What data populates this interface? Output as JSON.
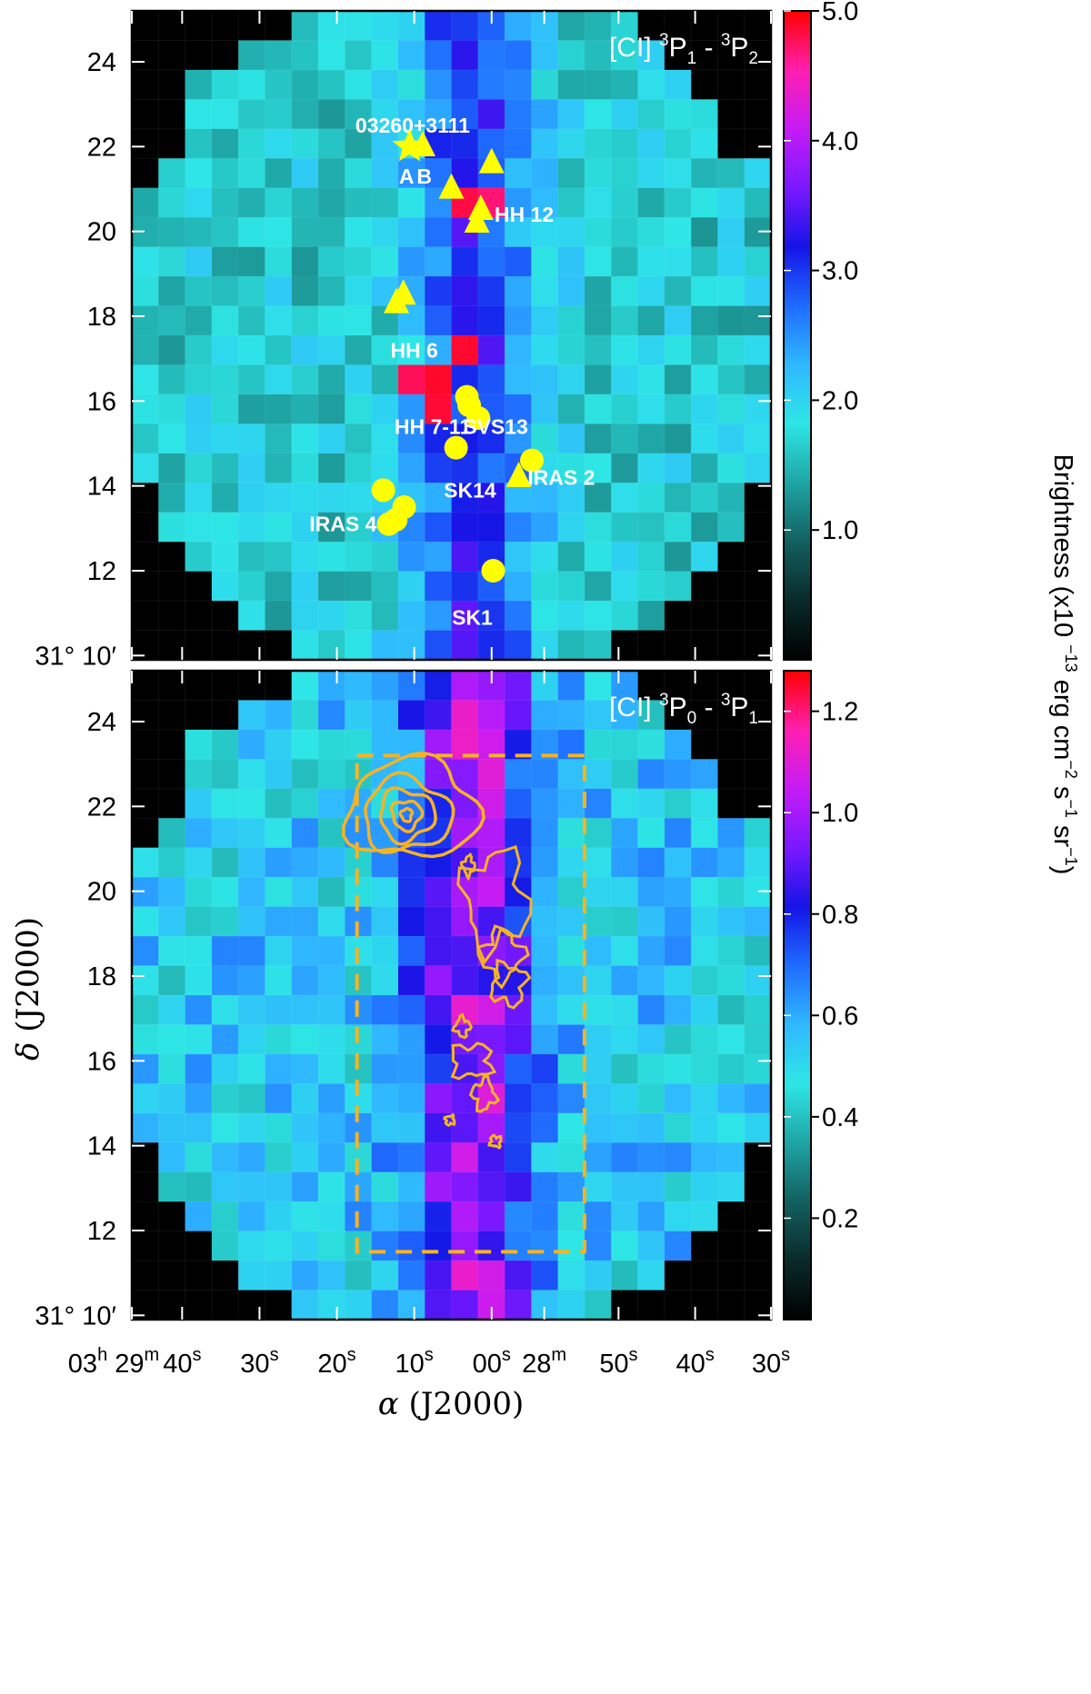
{
  "chart_data": [
    {
      "type": "heatmap",
      "panel": "top",
      "label": "[CI] 3P1 - 3P2",
      "label_parts": {
        "prefix": "[CI] ",
        "sup1": "3",
        "mid1": "P",
        "sub1": "1",
        "dash": " - ",
        "sup2": "3",
        "mid2": "P",
        "sub2": "2"
      },
      "grid_cols": 24,
      "grid_rows": 22,
      "peak_cells": [
        [
          12,
          6
        ],
        [
          13,
          6
        ],
        [
          11,
          12
        ],
        [
          12,
          11
        ],
        [
          11,
          13
        ],
        [
          10,
          12
        ]
      ],
      "sources": [
        {
          "name": "03260+3111",
          "ra_arcmin": 10.2,
          "dec_arcmin": 22.5,
          "marker": "none"
        },
        {
          "name": "A",
          "ra_arcmin": 11.0,
          "dec_arcmin": 21.3,
          "marker": "none"
        },
        {
          "name": "B",
          "ra_arcmin": 8.7,
          "dec_arcmin": 21.3,
          "marker": "none"
        },
        {
          "name": "star-A",
          "ra_arcmin": 10.6,
          "dec_arcmin": 22.0,
          "marker": "star"
        },
        {
          "name": "tri-B",
          "ra_arcmin": 8.9,
          "dec_arcmin": 22.0,
          "marker": "triangle"
        },
        {
          "name": "tri-1",
          "ra_arcmin": 0.0,
          "dec_arcmin": 21.6,
          "marker": "triangle"
        },
        {
          "name": "tri-2",
          "ra_arcmin": 5.2,
          "dec_arcmin": 21.0,
          "marker": "triangle"
        },
        {
          "name": "tri-3",
          "ra_arcmin": 1.4,
          "dec_arcmin": 20.5,
          "marker": "triangle"
        },
        {
          "name": "tri-4",
          "ra_arcmin": 1.9,
          "dec_arcmin": 20.2,
          "marker": "triangle"
        },
        {
          "name": "HH 12",
          "ra_arcmin": -4.2,
          "dec_arcmin": 20.4,
          "marker": "none"
        },
        {
          "name": "tri-5",
          "ra_arcmin": 12.3,
          "dec_arcmin": 18.3,
          "marker": "triangle"
        },
        {
          "name": "tri-6",
          "ra_arcmin": 11.4,
          "dec_arcmin": 18.5,
          "marker": "triangle"
        },
        {
          "name": "HH 6",
          "ra_arcmin": 10.0,
          "dec_arcmin": 17.2,
          "marker": "none"
        },
        {
          "name": "circ-1",
          "ra_arcmin": 2.9,
          "dec_arcmin": 15.9,
          "marker": "circle"
        },
        {
          "name": "circ-2",
          "ra_arcmin": 3.2,
          "dec_arcmin": 16.1,
          "marker": "circle"
        },
        {
          "name": "circ-3",
          "ra_arcmin": 1.7,
          "dec_arcmin": 15.6,
          "marker": "circle"
        },
        {
          "name": "HH 7-11",
          "ra_arcmin": 7.6,
          "dec_arcmin": 15.4,
          "marker": "none"
        },
        {
          "name": "SVS13",
          "ra_arcmin": -0.5,
          "dec_arcmin": 15.4,
          "marker": "none"
        },
        {
          "name": "circ-4",
          "ra_arcmin": 4.6,
          "dec_arcmin": 14.9,
          "marker": "circle"
        },
        {
          "name": "circ-5",
          "ra_arcmin": -5.2,
          "dec_arcmin": 14.6,
          "marker": "circle"
        },
        {
          "name": "tri-7",
          "ra_arcmin": -3.5,
          "dec_arcmin": 14.2,
          "marker": "triangle"
        },
        {
          "name": "IRAS 2",
          "ra_arcmin": -9.0,
          "dec_arcmin": 14.2,
          "marker": "none"
        },
        {
          "name": "SK14",
          "ra_arcmin": 2.8,
          "dec_arcmin": 13.9,
          "marker": "none"
        },
        {
          "name": "circ-6",
          "ra_arcmin": 14.0,
          "dec_arcmin": 13.9,
          "marker": "circle"
        },
        {
          "name": "circ-7",
          "ra_arcmin": 11.3,
          "dec_arcmin": 13.5,
          "marker": "circle"
        },
        {
          "name": "circ-8",
          "ra_arcmin": 12.4,
          "dec_arcmin": 13.2,
          "marker": "circle"
        },
        {
          "name": "circ-9",
          "ra_arcmin": 13.3,
          "dec_arcmin": 13.1,
          "marker": "circle"
        },
        {
          "name": "IRAS 4",
          "ra_arcmin": 19.2,
          "dec_arcmin": 13.1,
          "marker": "none"
        },
        {
          "name": "circ-10",
          "ra_arcmin": -0.2,
          "dec_arcmin": 12.0,
          "marker": "circle"
        },
        {
          "name": "SK1",
          "ra_arcmin": 2.5,
          "dec_arcmin": 10.9,
          "marker": "none"
        }
      ]
    },
    {
      "type": "heatmap",
      "panel": "bottom",
      "label": "[CI] 3P0 - 3P1",
      "label_parts": {
        "prefix": "[CI] ",
        "sup1": "3",
        "mid1": "P",
        "sub1": "0",
        "dash": " - ",
        "sup2": "3",
        "mid2": "P",
        "sub2": "1"
      },
      "grid_cols": 24,
      "grid_rows": 22,
      "dashed_box": {
        "ra_east": 17.4,
        "ra_west": -12.0,
        "dec_south": 11.5,
        "dec_north": 23.2,
        "color": "#f5b324"
      },
      "contour_color": "#f5b324"
    }
  ],
  "axes": {
    "xlabel": "α (J2000)",
    "xlabel_parts": {
      "greek": "α",
      "rest": " (J2000)"
    },
    "ylabel": "δ (J2000)",
    "ylabel_parts": {
      "greek": "δ",
      "rest": " (J2000)"
    },
    "x_ticks": [
      {
        "ra_arcmin": 46.5,
        "label": "03h 29m",
        "parts": [
          "03",
          "h",
          " 29",
          "m"
        ]
      },
      {
        "ra_arcmin": 40,
        "label": "40s",
        "parts": [
          "40",
          "s"
        ]
      },
      {
        "ra_arcmin": 30,
        "label": "30s",
        "parts": [
          "30",
          "s"
        ]
      },
      {
        "ra_arcmin": 20,
        "label": "20s",
        "parts": [
          "20",
          "s"
        ]
      },
      {
        "ra_arcmin": 10,
        "label": "10s",
        "parts": [
          "10",
          "s"
        ]
      },
      {
        "ra_arcmin": 0,
        "label": "00s",
        "parts": [
          "00",
          "s"
        ]
      },
      {
        "ra_arcmin": -6.8,
        "label": "28m",
        "parts": [
          "28",
          "m"
        ]
      },
      {
        "ra_arcmin": -16.4,
        "label": "50s",
        "parts": [
          "50",
          "s"
        ]
      },
      {
        "ra_arcmin": -26.3,
        "label": "40s",
        "parts": [
          "40",
          "s"
        ]
      },
      {
        "ra_arcmin": -36.1,
        "label": "30s",
        "parts": [
          "30",
          "s"
        ]
      }
    ],
    "y_ticks": [
      {
        "dec_arcmin": 24,
        "label": "24"
      },
      {
        "dec_arcmin": 22,
        "label": "22"
      },
      {
        "dec_arcmin": 20,
        "label": "20"
      },
      {
        "dec_arcmin": 18,
        "label": "18"
      },
      {
        "dec_arcmin": 16,
        "label": "16"
      },
      {
        "dec_arcmin": 14,
        "label": "14"
      },
      {
        "dec_arcmin": 12,
        "label": "12"
      },
      {
        "dec_arcmin": 10,
        "label": "31° 10′"
      }
    ],
    "ra_range": [
      46.5,
      -36.1
    ],
    "dec_range": [
      9.9,
      25.2
    ]
  },
  "colorbars": [
    {
      "panel": "top",
      "range": [
        0.0,
        5.0
      ],
      "ticks": [
        {
          "value": 5.0,
          "label": "5.0"
        },
        {
          "value": 4.0,
          "label": "4.0"
        },
        {
          "value": 3.0,
          "label": "3.0"
        },
        {
          "value": 2.0,
          "label": "2.0"
        },
        {
          "value": 1.0,
          "label": "1.0"
        }
      ]
    },
    {
      "panel": "bottom",
      "range": [
        0.0,
        1.28
      ],
      "ticks": [
        {
          "value": 1.2,
          "label": "1.2"
        },
        {
          "value": 1.0,
          "label": "1.0"
        },
        {
          "value": 0.8,
          "label": "0.8"
        },
        {
          "value": 0.6,
          "label": "0.6"
        },
        {
          "value": 0.4,
          "label": "0.4"
        },
        {
          "value": 0.2,
          "label": "0.2"
        }
      ]
    }
  ],
  "colorbar_title": "Brightness (x10 −13 erg cm−2 s−1 sr−1)",
  "colorbar_title_parts": {
    "a": "Brightness (x10 ",
    "e1": "−13",
    "b": " erg cm",
    "e2": "−2",
    "c": " s",
    "e3": "−1",
    "d": " sr",
    "e4": "−1",
    "f": ")"
  },
  "colormap": [
    "#000000",
    "#0a2a2a",
    "#136060",
    "#1fa5a5",
    "#2ee6e6",
    "#2fb8ff",
    "#1f6cff",
    "#1515e6",
    "#7a18ff",
    "#c51cf5",
    "#ff1fb0",
    "#ff0000"
  ],
  "marker_color": "#ffff00"
}
